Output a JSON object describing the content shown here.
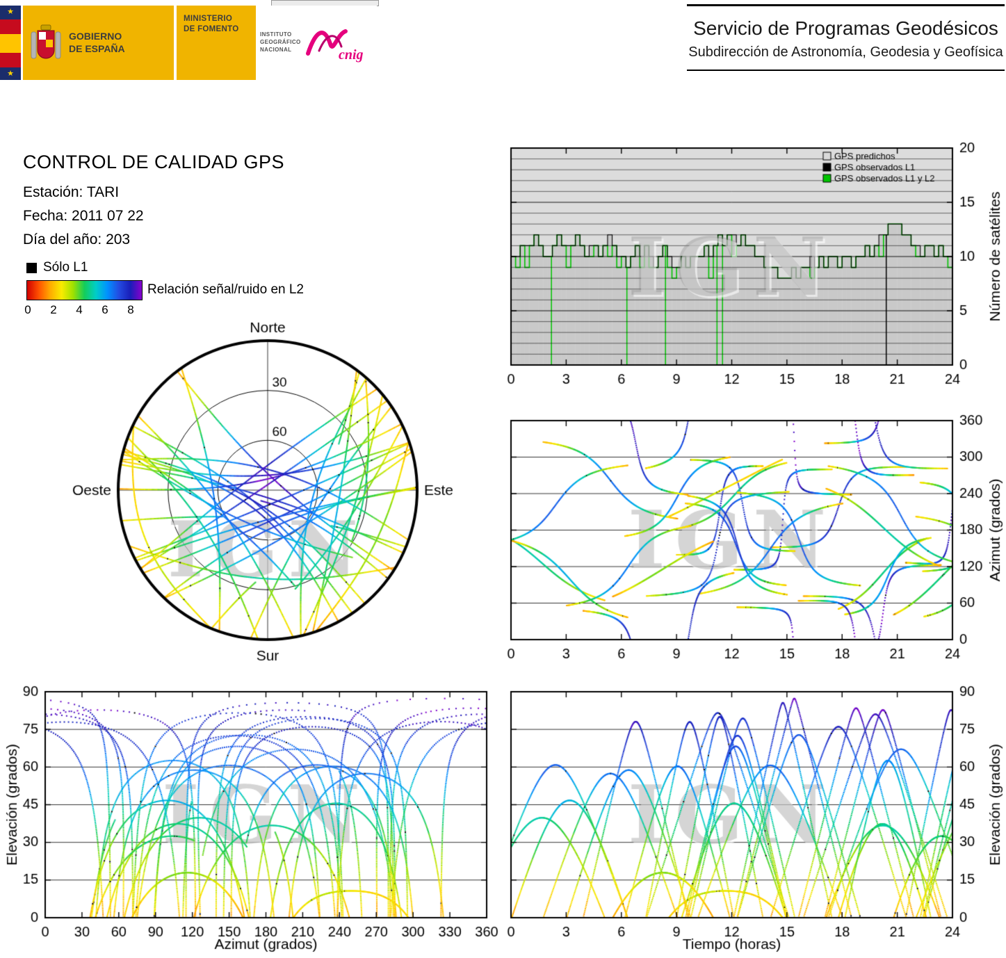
{
  "header": {
    "gobierno": "GOBIERNO\nDE ESPAÑA",
    "ministerio": "MINISTERIO\nDE FOMENTO",
    "instituto": "INSTITUTO\nGEOGRÁFICO\nNACIONAL",
    "cnig": "cnig",
    "service_title": "Servicio de Programas Geodésicos",
    "service_subtitle": "Subdirección de Astronomía, Geodesia y Geofísica"
  },
  "icons": {
    "star": "★"
  },
  "colors": {
    "flag_red": "#c60b1e",
    "flag_yellow": "#ffc400",
    "flag_navy": "#1b2d6b",
    "gold": "#f0b400",
    "cnig_magenta": "#e5007d",
    "observed_green": "#00c400",
    "predicted_gray": "#c9c9c9"
  },
  "info": {
    "title": "CONTROL DE CALIDAD GPS",
    "station": "Estación: TARI",
    "date": "Fecha: 2011 07 22",
    "doy": "Día del año: 203"
  },
  "snr_legend": {
    "solo_l1": "Sólo L1",
    "label": "Relación señal/ruido en L2",
    "ticks": [
      "0",
      "2",
      "4",
      "6",
      "8"
    ]
  },
  "watermark": "IGN",
  "chart_data": [
    {
      "id": "sat_count",
      "type": "step-area",
      "title": "",
      "xlabel": "",
      "ylabel": "Número de satélites",
      "xlim": [
        0,
        24
      ],
      "ylim": [
        0,
        20
      ],
      "xticks": [
        0,
        3,
        6,
        9,
        12,
        15,
        18,
        21,
        24
      ],
      "yticks": [
        0,
        5,
        10,
        15,
        20
      ],
      "grid": "horizontal-every-1",
      "legend_position": "top-right-inside",
      "legend": [
        {
          "label": "GPS predichos",
          "color": "#d9d9d9"
        },
        {
          "label": "GPS observados L1",
          "color": "#000000"
        },
        {
          "label": "GPS observados L1 y L2",
          "color": "#00c400"
        }
      ],
      "step_hours": 0.25,
      "predicted": [
        10,
        10,
        11,
        11,
        11,
        12,
        11,
        10,
        10,
        11,
        12,
        11,
        11,
        11,
        12,
        11,
        10,
        11,
        11,
        10,
        11,
        12,
        11,
        10,
        10,
        9,
        10,
        11,
        10,
        11,
        10,
        9,
        10,
        11,
        10,
        9,
        9,
        10,
        9,
        10,
        10,
        10,
        11,
        10,
        11,
        12,
        11,
        12,
        12,
        11,
        12,
        11,
        11,
        10,
        10,
        9,
        9,
        9,
        8,
        8,
        8,
        9,
        8,
        9,
        9,
        10,
        9,
        10,
        9,
        10,
        10,
        9,
        10,
        10,
        9,
        10,
        10,
        11,
        10,
        11,
        12,
        12,
        13,
        13,
        13,
        12,
        12,
        11,
        11,
        10,
        11,
        11,
        10,
        11,
        10,
        10
      ],
      "green_drops": [
        2.2,
        6.3,
        8.4,
        11.2,
        11.5
      ],
      "black_drops": [
        20.4
      ]
    },
    {
      "id": "az_time",
      "type": "scatter-tracks",
      "xlabel": "",
      "ylabel": "Azimut (grados)",
      "xlim": [
        0,
        24
      ],
      "ylim": [
        0,
        360
      ],
      "xticks": [
        0,
        3,
        6,
        9,
        12,
        15,
        18,
        21,
        24
      ],
      "yticks": [
        0,
        60,
        120,
        180,
        240,
        300,
        360
      ],
      "grid": "horizontal"
    },
    {
      "id": "skyplot",
      "type": "polar-tracks",
      "cardinals": {
        "n": "Norte",
        "s": "Sur",
        "e": "Este",
        "w": "Oeste"
      },
      "rings": [
        {
          "el": 30,
          "label": "30"
        },
        {
          "el": 60,
          "label": "60"
        }
      ],
      "elevation_range": [
        0,
        90
      ],
      "azimuth_range": [
        0,
        360
      ]
    },
    {
      "id": "elev_az",
      "type": "scatter-tracks",
      "xlabel": "Azimut (grados)",
      "ylabel": "Elevación (grados)",
      "xlim": [
        0,
        360
      ],
      "ylim": [
        0,
        90
      ],
      "xticks": [
        0,
        30,
        60,
        90,
        120,
        150,
        180,
        210,
        240,
        270,
        300,
        330,
        360
      ],
      "yticks": [
        0,
        15,
        30,
        45,
        60,
        75,
        90
      ],
      "grid": "horizontal"
    },
    {
      "id": "elev_time",
      "type": "scatter-tracks",
      "xlabel": "Tiempo (horas)",
      "ylabel": "Elevación (grados)",
      "xlim": [
        0,
        24
      ],
      "ylim": [
        0,
        90
      ],
      "xticks": [
        0,
        3,
        6,
        9,
        12,
        15,
        18,
        21,
        24
      ],
      "yticks": [
        0,
        15,
        30,
        45,
        60,
        75,
        90
      ],
      "grid": "horizontal"
    }
  ],
  "satellite_tracks": {
    "seed": 20110722,
    "num_passes": 34,
    "snr_range": [
      0,
      8.4
    ],
    "colormap": [
      [
        0.0,
        210,
        0,
        0
      ],
      [
        0.08,
        255,
        80,
        0
      ],
      [
        0.18,
        255,
        170,
        0
      ],
      [
        0.28,
        250,
        235,
        0
      ],
      [
        0.38,
        160,
        225,
        0
      ],
      [
        0.5,
        20,
        205,
        90
      ],
      [
        0.6,
        0,
        205,
        200
      ],
      [
        0.7,
        0,
        145,
        255
      ],
      [
        0.8,
        35,
        75,
        225
      ],
      [
        0.9,
        25,
        30,
        185
      ],
      [
        1.0,
        135,
        0,
        205
      ]
    ]
  }
}
